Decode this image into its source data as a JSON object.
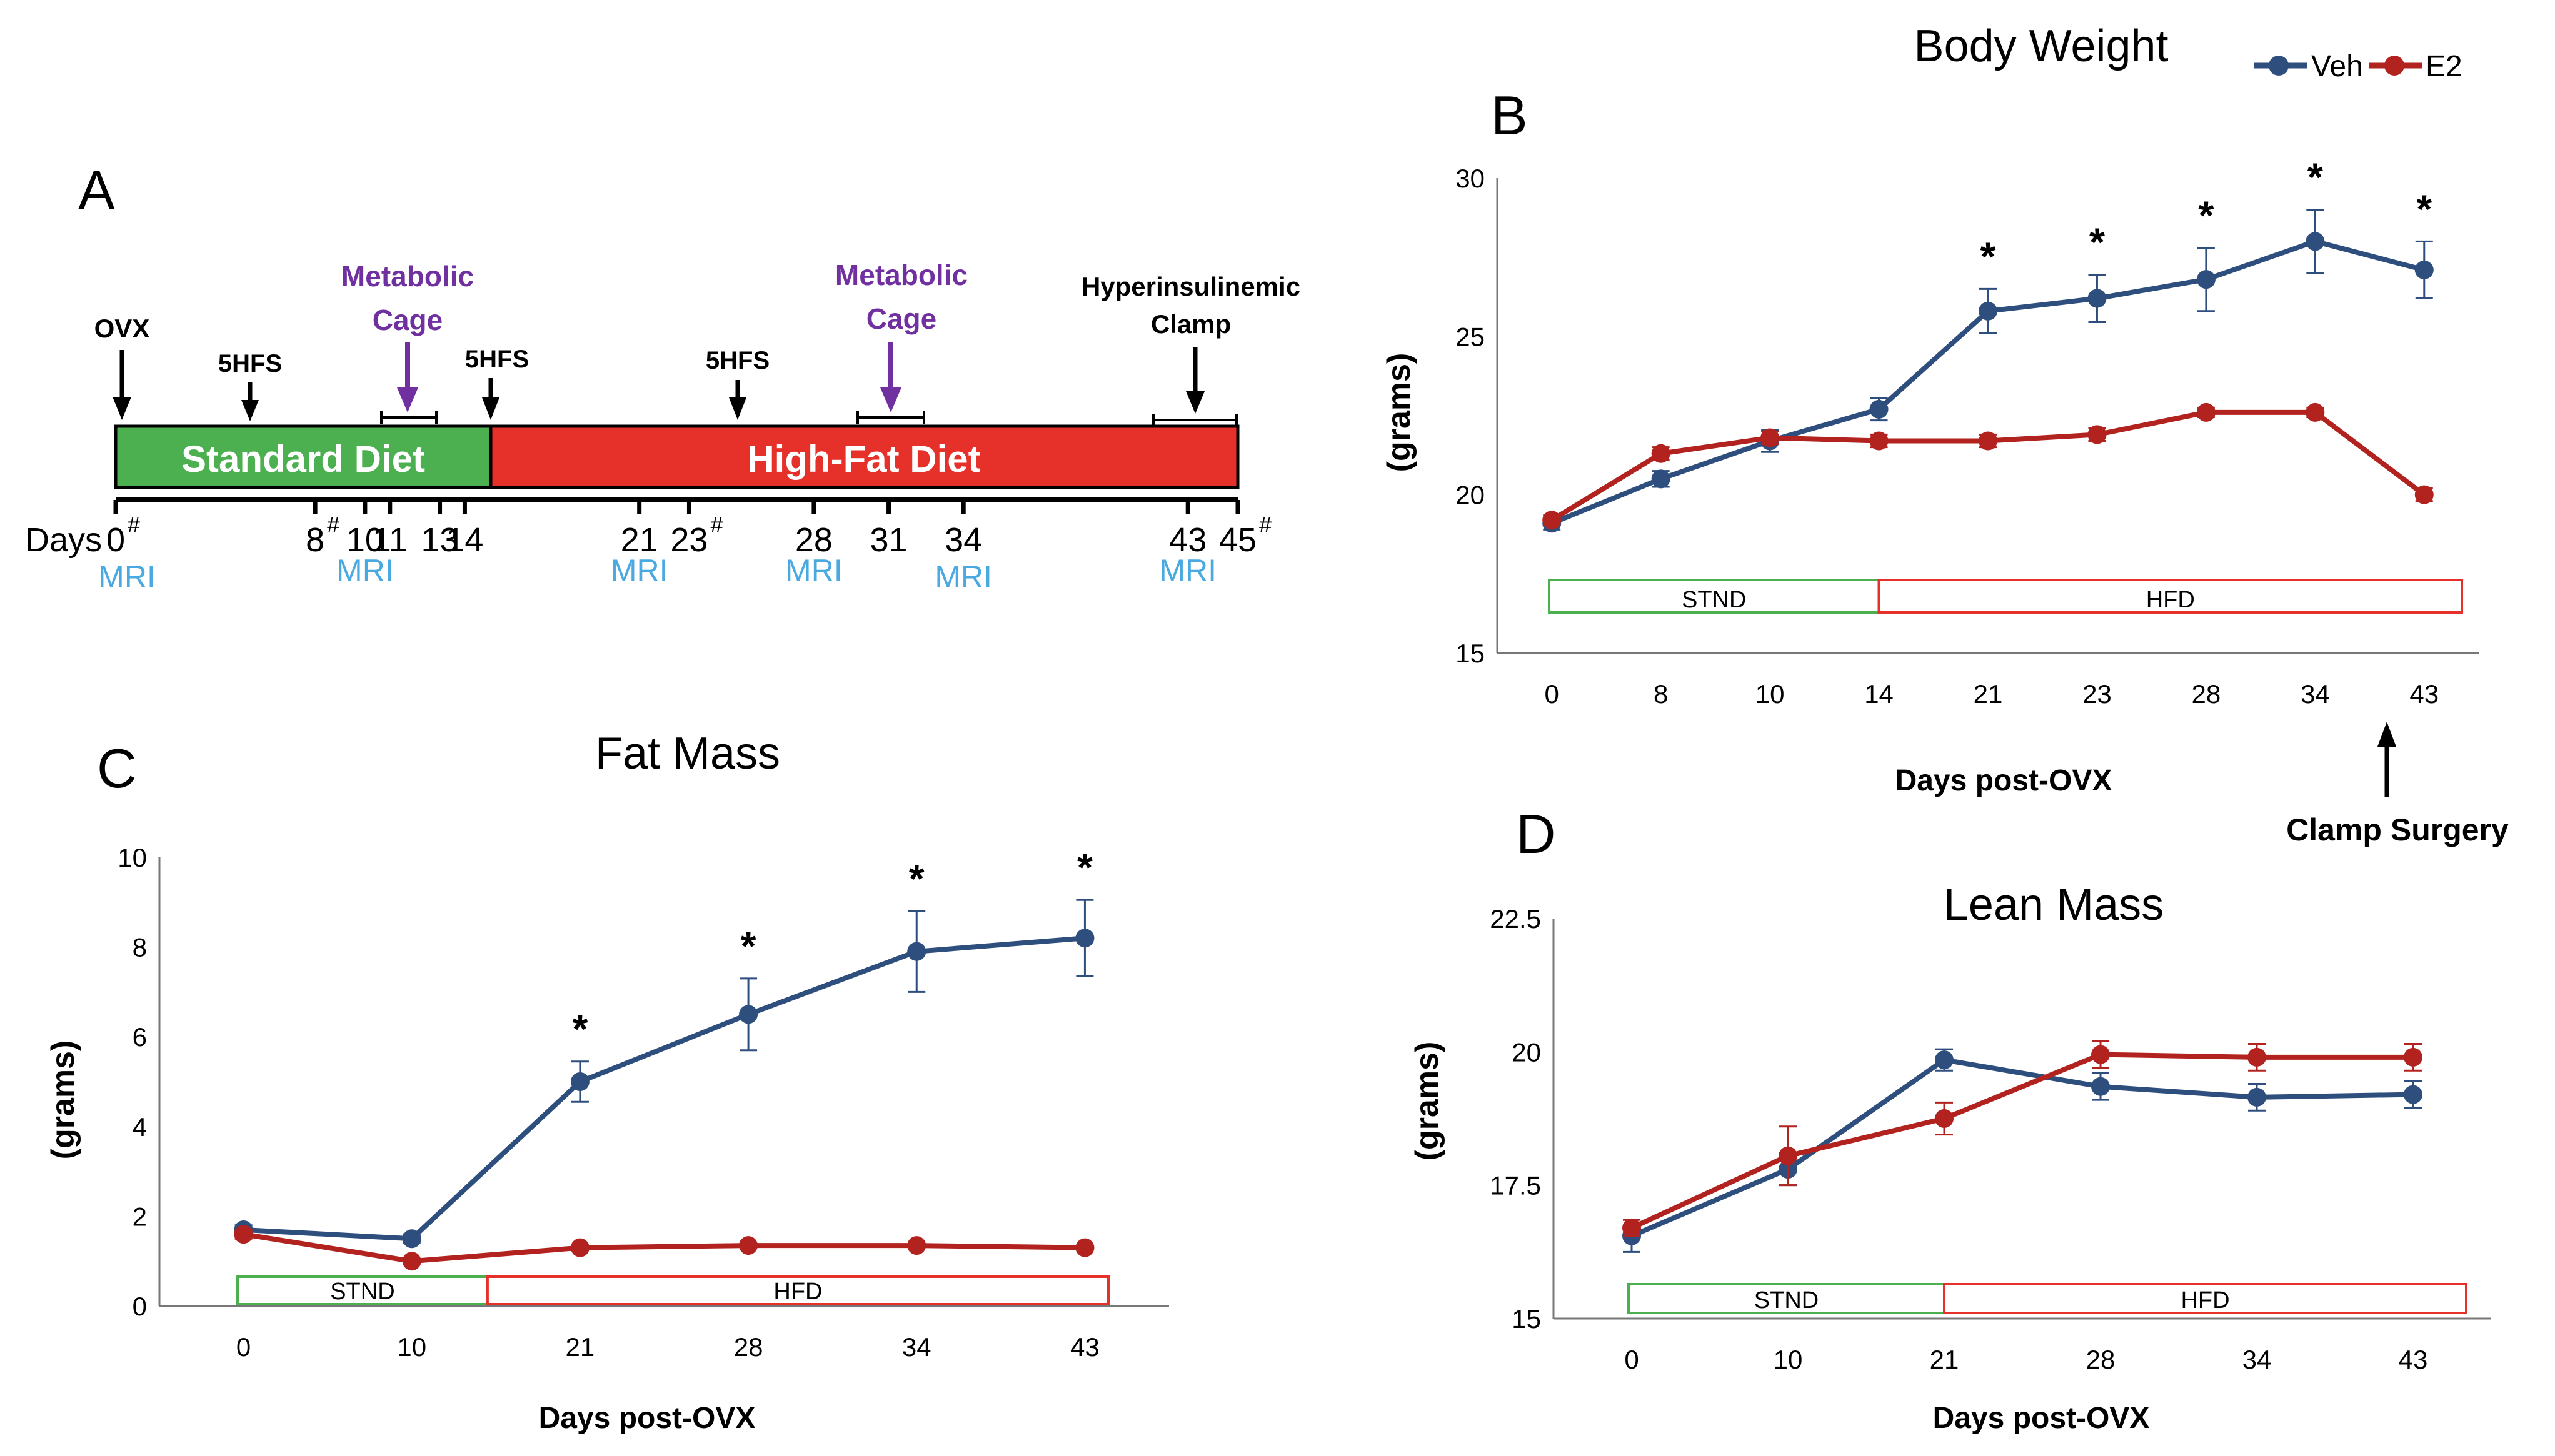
{
  "colors": {
    "veh": "#2e4e7e",
    "e2": "#b2231f",
    "standard": "#4caf50",
    "highfat": "#e6302a",
    "metabolic": "#7030a0",
    "mri": "#4aa9e0"
  },
  "legend": {
    "veh": "Veh",
    "e2": "E2"
  },
  "timeline": {
    "label": "A",
    "events": {
      "ovx": "OVX",
      "hfs1": "5HFS",
      "hfs2": "5HFS",
      "hfs3": "5HFS",
      "metabolic1": "Metabolic Cage",
      "metabolic2": "Metabolic Cage",
      "clamp": "Hyperinsulinemic Clamp"
    },
    "standard_diet": "Standard Diet",
    "high_fat_diet": "High-Fat Diet",
    "days_label": "Days",
    "days": [
      {
        "text": "0",
        "mark": "#",
        "day": 0
      },
      {
        "text": "8",
        "mark": "#",
        "day": 8
      },
      {
        "text": "10",
        "mark": "",
        "day": 10
      },
      {
        "text": "11",
        "mark": "",
        "day": 11
      },
      {
        "text": "13",
        "mark": "",
        "day": 13
      },
      {
        "text": "14",
        "mark": "",
        "day": 14
      },
      {
        "text": "21",
        "mark": "",
        "day": 21
      },
      {
        "text": "23",
        "mark": "#",
        "day": 23
      },
      {
        "text": "28",
        "mark": "",
        "day": 28
      },
      {
        "text": "31",
        "mark": "",
        "day": 31
      },
      {
        "text": "34",
        "mark": "",
        "day": 34
      },
      {
        "text": "43",
        "mark": "",
        "day": 43
      },
      {
        "text": "45",
        "mark": "#",
        "day": 45
      }
    ],
    "mri_label": "MRI",
    "mri_days": [
      0,
      10,
      21,
      28,
      34,
      43
    ]
  },
  "chart_data": [
    {
      "panel": "B",
      "type": "line",
      "title": "Body Weight",
      "xlabel": "Days post-OVX",
      "ylabel": "(grams)",
      "categories": [
        "0",
        "8",
        "10",
        "14",
        "21",
        "23",
        "28",
        "34",
        "43"
      ],
      "ylim": [
        15,
        30
      ],
      "yticks": [
        "15",
        "20",
        "25",
        "30"
      ],
      "series": [
        {
          "name": "Veh",
          "values": [
            19.1,
            20.5,
            21.7,
            22.7,
            25.8,
            26.2,
            26.8,
            28.0,
            27.1
          ],
          "errors": [
            0.2,
            0.25,
            0.35,
            0.35,
            0.7,
            0.75,
            1.0,
            1.0,
            0.9
          ]
        },
        {
          "name": "E2",
          "values": [
            19.2,
            21.3,
            21.8,
            21.7,
            21.7,
            21.9,
            22.6,
            22.6,
            20.0
          ],
          "errors": [
            0.15,
            0.2,
            0.2,
            0.2,
            0.2,
            0.2,
            0.15,
            0.15,
            0.2
          ]
        }
      ],
      "significance": {
        "symbol": "*",
        "indices": [
          4,
          5,
          6,
          7,
          8
        ]
      },
      "diet_bars": [
        {
          "label": "STND",
          "from": 0,
          "to": 3
        },
        {
          "label": "HFD",
          "from": 3,
          "to": 8
        }
      ],
      "annotation": "Clamp Surgery"
    },
    {
      "panel": "C",
      "type": "line",
      "title": "Fat Mass",
      "xlabel": "Days post-OVX",
      "ylabel": "(grams)",
      "categories": [
        "0",
        "10",
        "21",
        "28",
        "34",
        "43"
      ],
      "ylim": [
        0,
        10
      ],
      "yticks": [
        "0",
        "2",
        "4",
        "6",
        "8",
        "10"
      ],
      "series": [
        {
          "name": "Veh",
          "values": [
            1.7,
            1.5,
            5.0,
            6.5,
            7.9,
            8.2
          ],
          "errors": [
            0.1,
            0.1,
            0.45,
            0.8,
            0.9,
            0.85
          ]
        },
        {
          "name": "E2",
          "values": [
            1.6,
            1.0,
            1.3,
            1.35,
            1.35,
            1.3
          ],
          "errors": [
            0.1,
            0.05,
            0.05,
            0.05,
            0.05,
            0.05
          ]
        }
      ],
      "significance": {
        "symbol": "*",
        "indices": [
          2,
          3,
          4,
          5
        ]
      },
      "diet_bars": [
        {
          "label": "STND",
          "from": 0,
          "to": 1.45
        },
        {
          "label": "HFD",
          "from": 1.45,
          "to": 5
        }
      ]
    },
    {
      "panel": "D",
      "type": "line",
      "title": "Lean Mass",
      "xlabel": "Days post-OVX",
      "ylabel": "(grams)",
      "categories": [
        "0",
        "10",
        "21",
        "28",
        "34",
        "43"
      ],
      "ylim": [
        15,
        22.5
      ],
      "yticks": [
        "15",
        "17.5",
        "20",
        "22.5"
      ],
      "series": [
        {
          "name": "Veh",
          "values": [
            16.55,
            17.8,
            19.85,
            19.35,
            19.15,
            19.2
          ],
          "errors": [
            0.3,
            0.3,
            0.2,
            0.25,
            0.25,
            0.25
          ]
        },
        {
          "name": "E2",
          "values": [
            16.7,
            18.05,
            18.75,
            19.95,
            19.9,
            19.9
          ],
          "errors": [
            0.15,
            0.55,
            0.3,
            0.25,
            0.25,
            0.25
          ]
        }
      ],
      "significance": {
        "symbol": "*",
        "indices": []
      },
      "diet_bars": [
        {
          "label": "STND",
          "from": 0,
          "to": 2
        },
        {
          "label": "HFD",
          "from": 2,
          "to": 5
        }
      ]
    }
  ]
}
